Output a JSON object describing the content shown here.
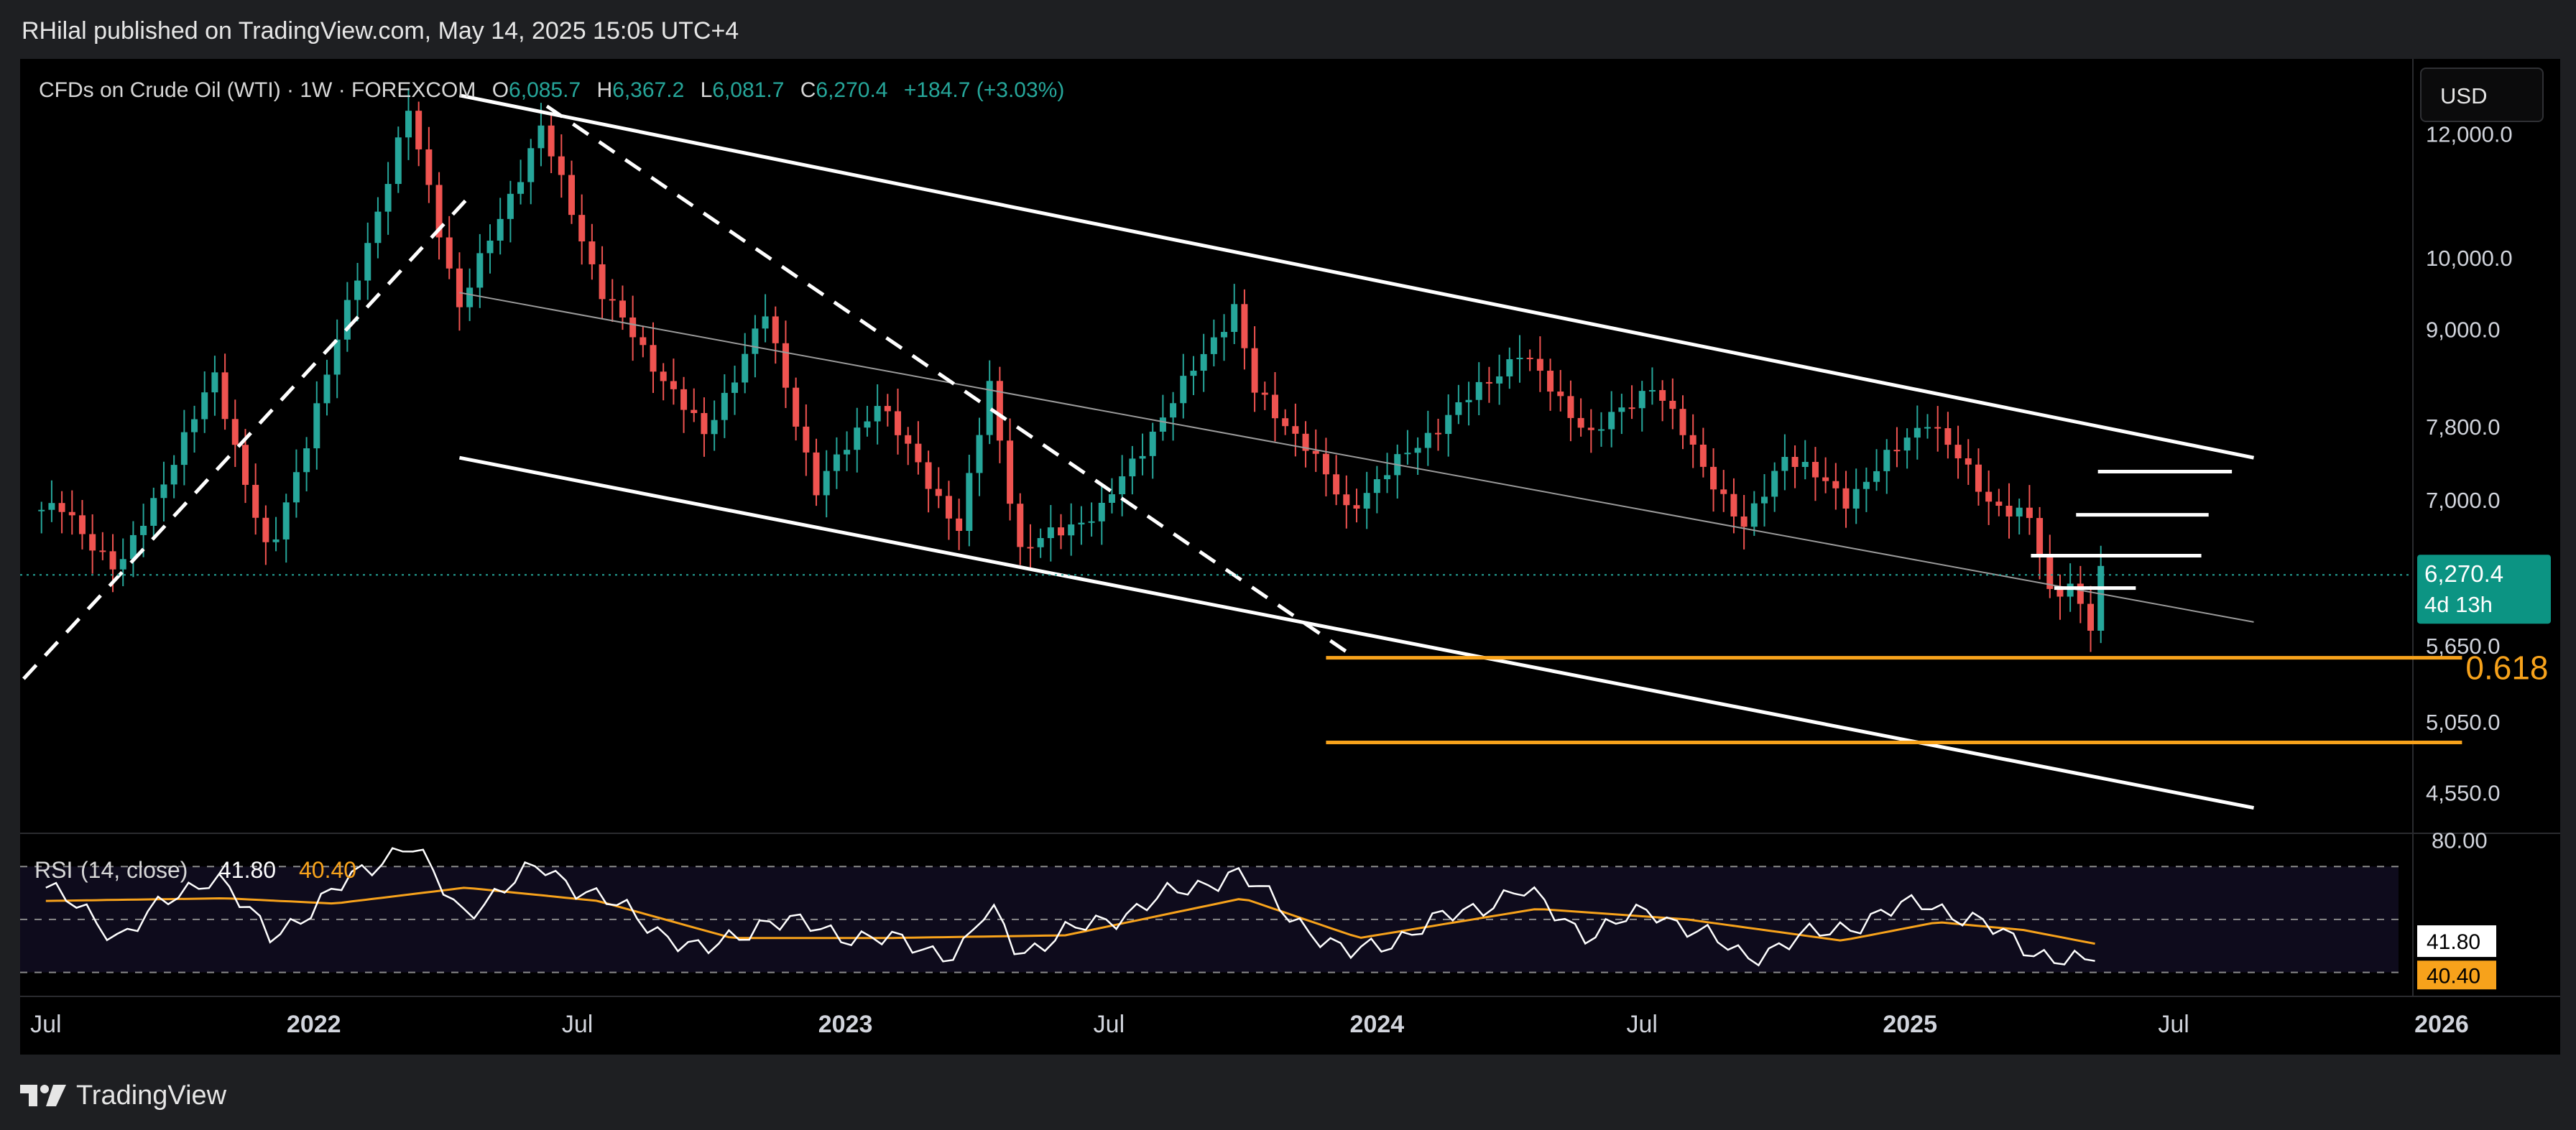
{
  "header": {
    "published": "RHilal published on TradingView.com, May 14, 2025 15:05 UTC+4"
  },
  "legend": {
    "symbol": "CFDs on Crude Oil (WTI) · 1W · FOREXCOM",
    "open_key": "O",
    "open": "6,085.7",
    "high_key": "H",
    "high": "6,367.2",
    "low_key": "L",
    "low": "6,081.7",
    "close_key": "C",
    "close": "6,270.4",
    "change": "+184.7 (+3.03%)"
  },
  "toolbar": {
    "currency": "USD"
  },
  "brand": {
    "name": "TradingView",
    "icon": "tradingview-logo-icon"
  },
  "colors": {
    "up": "#26a69a",
    "down": "#ef5350",
    "orange": "#f7a21b",
    "rsi_line": "#ffffff",
    "rsi_ma": "#f7a21b",
    "price_tag": "#0c9483"
  },
  "chart_data": [
    {
      "type": "candlestick",
      "scale": "log",
      "ylim": [
        4300,
        13400
      ],
      "y_ticks": [
        "12,000.0",
        "10,000.0",
        "9,000.0",
        "7,800.0",
        "7,000.0",
        "5,650.0",
        "5,050.0",
        "4,550.0"
      ],
      "x_ticks": [
        "Jul",
        "2022",
        "Jul",
        "2023",
        "Jul",
        "2024",
        "Jul",
        "2025",
        "Jul",
        "2026"
      ],
      "x_range": [
        "2021-06",
        "2026-01"
      ],
      "last_price": "6,270.4",
      "countdown": "4d 13h",
      "fib_label": "0.618",
      "key_points": [
        {
          "date": "2021-07-12",
          "value": 6900
        },
        {
          "date": "2021-08-20",
          "value": 6300
        },
        {
          "date": "2021-10-25",
          "value": 8400
        },
        {
          "date": "2021-12-01",
          "value": 6400
        },
        {
          "date": "2022-03-07",
          "value": 12400
        },
        {
          "date": "2022-04-11",
          "value": 9300
        },
        {
          "date": "2022-06-06",
          "value": 12100
        },
        {
          "date": "2022-07-18",
          "value": 9500
        },
        {
          "date": "2022-09-26",
          "value": 7700
        },
        {
          "date": "2022-11-07",
          "value": 9200
        },
        {
          "date": "2022-12-12",
          "value": 7100
        },
        {
          "date": "2023-01-23",
          "value": 8100
        },
        {
          "date": "2023-03-20",
          "value": 6700
        },
        {
          "date": "2023-04-10",
          "value": 8300
        },
        {
          "date": "2023-05-01",
          "value": 6500
        },
        {
          "date": "2023-06-26",
          "value": 6900
        },
        {
          "date": "2023-09-25",
          "value": 9300
        },
        {
          "date": "2023-10-09",
          "value": 8200
        },
        {
          "date": "2023-11-13",
          "value": 7600
        },
        {
          "date": "2023-12-11",
          "value": 6900
        },
        {
          "date": "2024-01-22",
          "value": 7500
        },
        {
          "date": "2024-04-08",
          "value": 8700
        },
        {
          "date": "2024-05-27",
          "value": 7700
        },
        {
          "date": "2024-07-08",
          "value": 8300
        },
        {
          "date": "2024-09-09",
          "value": 6700
        },
        {
          "date": "2024-10-07",
          "value": 7500
        },
        {
          "date": "2024-11-18",
          "value": 7000
        },
        {
          "date": "2025-01-13",
          "value": 7900
        },
        {
          "date": "2025-02-24",
          "value": 7000
        },
        {
          "date": "2025-03-24",
          "value": 6800
        },
        {
          "date": "2025-04-07",
          "value": 6100
        },
        {
          "date": "2025-04-21",
          "value": 6200
        },
        {
          "date": "2025-05-05",
          "value": 5800
        },
        {
          "date": "2025-05-12",
          "value": 6270
        }
      ],
      "levels": [
        {
          "name": "fib-0.618",
          "value": 5550,
          "from": "2023-11-27",
          "to": "2026-01-15"
        },
        {
          "name": "support-lower",
          "value": 4900,
          "from": "2023-11-27",
          "to": "2026-01-15"
        },
        {
          "name": "resistance-1",
          "value": 7300,
          "from": "2025-05-10",
          "to": "2025-08-10"
        },
        {
          "name": "resistance-2",
          "value": 6850,
          "from": "2025-04-25",
          "to": "2025-07-25"
        },
        {
          "name": "resistance-3",
          "value": 6450,
          "from": "2025-03-25",
          "to": "2025-07-20"
        },
        {
          "name": "resistance-4",
          "value": 6150,
          "from": "2025-04-10",
          "to": "2025-06-05"
        }
      ],
      "trendlines": [
        {
          "name": "channel-upper",
          "style": "solid",
          "from": [
            "2022-04-11",
            12700
          ],
          "to": [
            "2025-08-25",
            7450
          ]
        },
        {
          "name": "channel-mid",
          "style": "thin",
          "from": [
            "2022-04-11",
            9500
          ],
          "to": [
            "2025-08-25",
            5850
          ]
        },
        {
          "name": "channel-lower",
          "style": "solid",
          "from": [
            "2022-04-11",
            7450
          ],
          "to": [
            "2025-08-25",
            4450
          ]
        },
        {
          "name": "dashed-rise",
          "style": "dashed",
          "from": [
            "2021-06-01",
            5200
          ],
          "to": [
            "2022-04-20",
            11000
          ]
        },
        {
          "name": "dashed-fall",
          "style": "dashed",
          "from": [
            "2022-06-10",
            12500
          ],
          "to": [
            "2023-12-11",
            5600
          ]
        }
      ]
    },
    {
      "type": "line",
      "title": "RSI",
      "params": "(14, close)",
      "value": "41.80",
      "ma_value": "40.40",
      "y_tick": "80.00",
      "ylim": [
        25,
        82
      ],
      "bands": [
        70,
        50,
        30
      ],
      "series": [
        {
          "name": "RSI",
          "key_points": [
            {
              "date": "2021-07-01",
              "value": 62
            },
            {
              "date": "2021-08-20",
              "value": 44
            },
            {
              "date": "2021-10-25",
              "value": 68
            },
            {
              "date": "2021-12-01",
              "value": 43
            },
            {
              "date": "2022-03-07",
              "value": 80
            },
            {
              "date": "2022-04-11",
              "value": 52
            },
            {
              "date": "2022-06-06",
              "value": 70
            },
            {
              "date": "2022-09-26",
              "value": 37
            },
            {
              "date": "2022-11-07",
              "value": 50
            },
            {
              "date": "2023-03-20",
              "value": 37
            },
            {
              "date": "2023-04-10",
              "value": 54
            },
            {
              "date": "2023-05-01",
              "value": 38
            },
            {
              "date": "2023-09-25",
              "value": 68
            },
            {
              "date": "2023-12-11",
              "value": 36
            },
            {
              "date": "2024-04-08",
              "value": 61
            },
            {
              "date": "2024-05-27",
              "value": 44
            },
            {
              "date": "2024-07-08",
              "value": 54
            },
            {
              "date": "2024-09-09",
              "value": 36
            },
            {
              "date": "2025-01-13",
              "value": 57
            },
            {
              "date": "2025-04-07",
              "value": 36
            },
            {
              "date": "2025-05-05",
              "value": 32
            },
            {
              "date": "2025-05-12",
              "value": 41.8
            }
          ]
        },
        {
          "name": "RSI MA",
          "key_points": [
            {
              "date": "2021-07-01",
              "value": 57
            },
            {
              "date": "2021-11-01",
              "value": 58
            },
            {
              "date": "2022-01-15",
              "value": 56
            },
            {
              "date": "2022-04-15",
              "value": 62
            },
            {
              "date": "2022-07-15",
              "value": 57
            },
            {
              "date": "2022-10-15",
              "value": 43
            },
            {
              "date": "2023-02-01",
              "value": 43
            },
            {
              "date": "2023-06-01",
              "value": 44
            },
            {
              "date": "2023-10-01",
              "value": 58
            },
            {
              "date": "2023-12-20",
              "value": 43
            },
            {
              "date": "2024-04-20",
              "value": 54
            },
            {
              "date": "2024-08-01",
              "value": 50
            },
            {
              "date": "2024-11-15",
              "value": 42
            },
            {
              "date": "2025-01-20",
              "value": 49
            },
            {
              "date": "2025-03-20",
              "value": 46
            },
            {
              "date": "2025-05-12",
              "value": 40.4
            }
          ]
        }
      ]
    }
  ]
}
